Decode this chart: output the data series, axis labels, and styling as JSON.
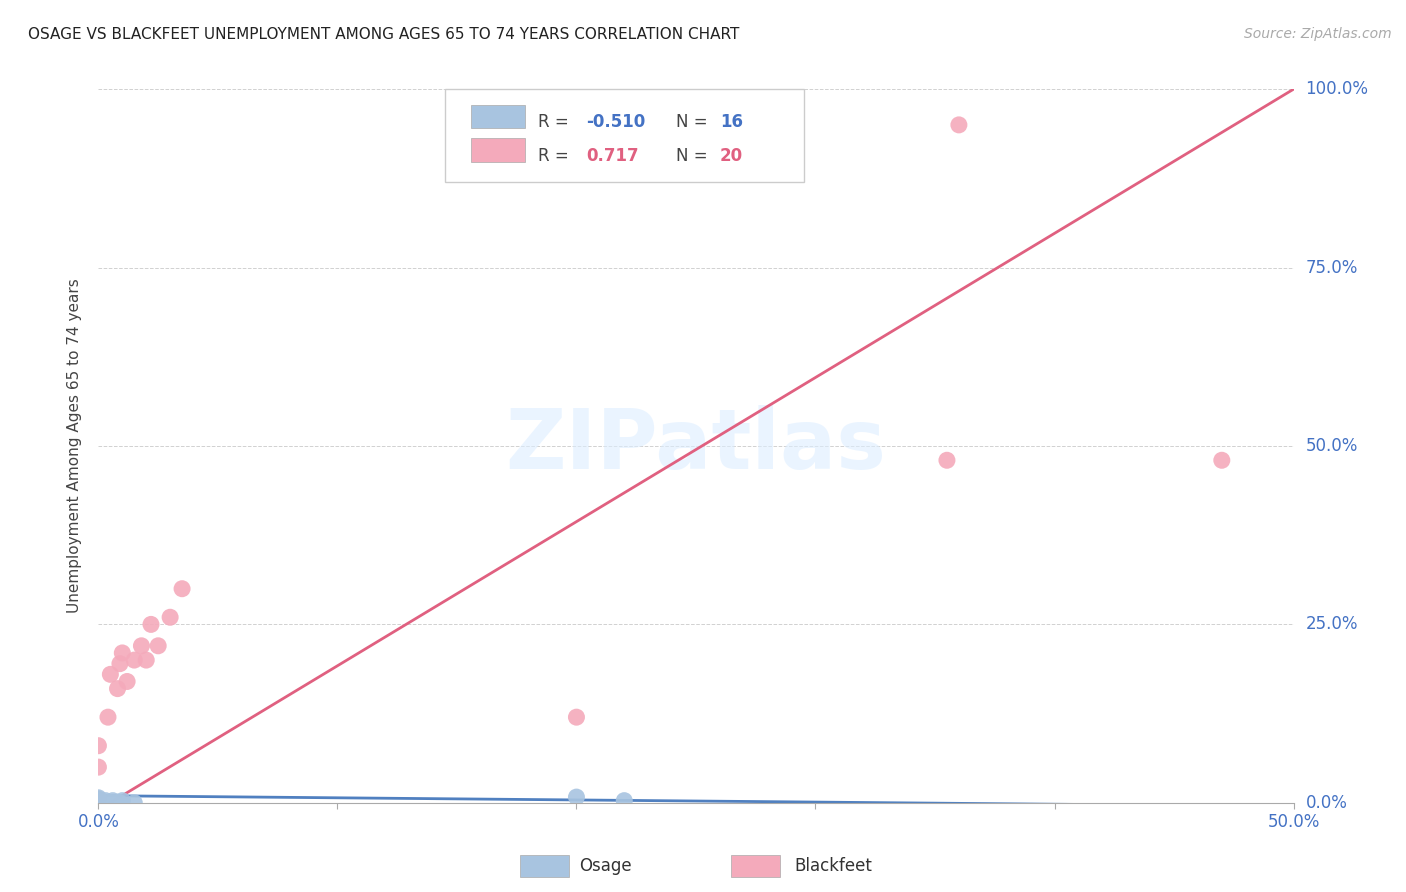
{
  "title": "OSAGE VS BLACKFEET UNEMPLOYMENT AMONG AGES 65 TO 74 YEARS CORRELATION CHART",
  "source": "Source: ZipAtlas.com",
  "ylabel": "Unemployment Among Ages 65 to 74 years",
  "xlim": [
    0.0,
    0.5
  ],
  "ylim": [
    0.0,
    1.0
  ],
  "xtick_values": [
    0.0,
    0.1,
    0.2,
    0.3,
    0.4,
    0.5
  ],
  "ytick_values": [
    0.0,
    0.25,
    0.5,
    0.75,
    1.0
  ],
  "osage_R": -0.51,
  "osage_N": 16,
  "blackfeet_R": 0.717,
  "blackfeet_N": 20,
  "osage_color": "#a8c4e0",
  "blackfeet_color": "#f4aabb",
  "osage_line_color": "#5080c0",
  "blackfeet_line_color": "#e06080",
  "osage_x": [
    0.0,
    0.0,
    0.0,
    0.0,
    0.0,
    0.0,
    0.003,
    0.003,
    0.005,
    0.006,
    0.008,
    0.009,
    0.01,
    0.015,
    0.2,
    0.22
  ],
  "osage_y": [
    0.0,
    0.0,
    0.002,
    0.003,
    0.005,
    0.007,
    0.0,
    0.003,
    0.0,
    0.003,
    0.0,
    0.0,
    0.003,
    0.0,
    0.008,
    0.003
  ],
  "blackfeet_x": [
    0.0,
    0.0,
    0.0,
    0.004,
    0.005,
    0.008,
    0.009,
    0.01,
    0.012,
    0.015,
    0.018,
    0.02,
    0.022,
    0.025,
    0.03,
    0.035,
    0.2,
    0.355,
    0.36,
    0.47
  ],
  "blackfeet_y": [
    0.005,
    0.05,
    0.08,
    0.12,
    0.18,
    0.16,
    0.195,
    0.21,
    0.17,
    0.2,
    0.22,
    0.2,
    0.25,
    0.22,
    0.26,
    0.3,
    0.12,
    0.48,
    0.95,
    0.48
  ],
  "blackfeet_line_x0": 0.0,
  "blackfeet_line_y0": -0.01,
  "blackfeet_line_x1": 0.5,
  "blackfeet_line_y1": 1.0,
  "osage_line_x0": 0.0,
  "osage_line_y0": 0.01,
  "osage_line_x1": 0.5,
  "osage_line_y1": -0.005
}
